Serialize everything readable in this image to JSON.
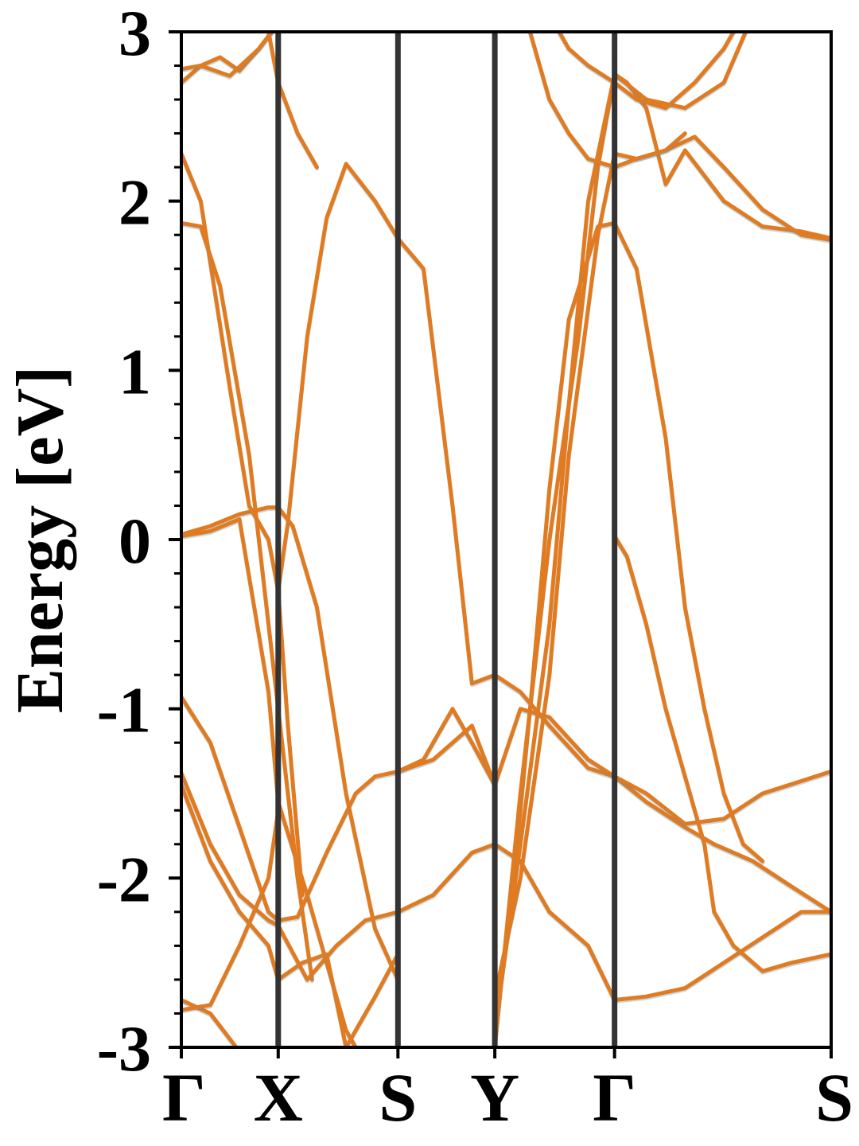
{
  "chart_data": {
    "type": "line",
    "title": "",
    "xlabel": "",
    "ylabel": "Energy [eV]",
    "ylim": [
      -3,
      3
    ],
    "grid": false,
    "yticks": [
      "-3",
      "-2",
      "-1",
      "0",
      "1",
      "2",
      "3"
    ],
    "kpath": [
      "Γ",
      "X",
      "S",
      "Y",
      "Γ",
      "S"
    ],
    "kpath_positions": [
      0,
      1,
      2.236,
      3.236,
      4.472,
      6.708
    ],
    "colors": {
      "band": "#e07b21",
      "shadow": "#5b8fa8",
      "axis": "#000000",
      "divider": "#333333"
    },
    "series": [
      {
        "x": [
          0,
          0.3,
          0.6,
          0.9,
          1.0,
          1.15,
          1.4,
          1.7,
          2.0,
          2.236
        ],
        "y": [
          0.03,
          0.08,
          0.15,
          0.19,
          0.19,
          0.08,
          -0.4,
          -1.5,
          -2.3,
          -2.6
        ]
      },
      {
        "x": [
          0,
          0.3,
          0.6,
          0.9,
          1.0,
          1.3,
          1.7,
          2.0,
          2.236
        ],
        "y": [
          0.02,
          0.05,
          0.12,
          -0.9,
          -1.55,
          -2.1,
          -2.9,
          -3.2,
          -3.4
        ]
      },
      {
        "x": [
          0,
          0.2,
          0.5,
          0.7,
          0.9,
          1.0,
          1.1,
          1.25
        ],
        "y": [
          2.28,
          2.0,
          0.9,
          0.2,
          0.0,
          -0.3,
          -1.1,
          -2.1
        ]
      },
      {
        "x": [
          0,
          0.2,
          0.4,
          0.7,
          0.9,
          1.0,
          1.2,
          1.35
        ],
        "y": [
          1.87,
          1.85,
          1.5,
          0.5,
          -0.5,
          -1.0,
          -2.0,
          -2.6
        ]
      },
      {
        "x": [
          1.0,
          1.1,
          1.3,
          1.5,
          1.7,
          2.0,
          2.236,
          2.5,
          2.8,
          3.0,
          3.236
        ],
        "y": [
          -0.3,
          0.1,
          1.2,
          1.9,
          2.22,
          2.0,
          1.78,
          1.6,
          0.2,
          -0.85,
          -0.8
        ]
      },
      {
        "x": [
          3.236,
          3.5,
          3.8,
          4.2,
          4.472,
          4.8,
          5.2,
          5.5,
          5.9,
          6.3,
          6.708
        ],
        "y": [
          -0.8,
          -0.9,
          -1.1,
          -1.35,
          -1.4,
          -1.55,
          -1.7,
          -1.8,
          -1.9,
          -2.05,
          -2.2
        ]
      },
      {
        "x": [
          0,
          0.3,
          0.6,
          0.9,
          1.0,
          1.2,
          1.5,
          1.8,
          2.0,
          2.236,
          2.5,
          2.8,
          3.0,
          3.236
        ],
        "y": [
          -0.93,
          -1.2,
          -1.7,
          -2.2,
          -2.25,
          -2.23,
          -1.85,
          -1.5,
          -1.4,
          -1.37,
          -1.3,
          -1.0,
          -1.2,
          -1.45
        ]
      },
      {
        "x": [
          2.236,
          2.6,
          3.0,
          3.236,
          3.5,
          3.8,
          4.2,
          4.472,
          4.8,
          5.2,
          5.6,
          6.0,
          6.708
        ],
        "y": [
          -1.37,
          -1.3,
          -1.1,
          -1.45,
          -1.0,
          -1.05,
          -1.3,
          -1.4,
          -1.5,
          -1.68,
          -1.65,
          -1.5,
          -1.37
        ]
      },
      {
        "x": [
          0,
          0.3,
          0.6,
          0.9,
          1.0,
          1.3,
          1.6,
          1.9,
          2.236,
          2.6,
          3.0,
          3.236
        ],
        "y": [
          -1.38,
          -1.8,
          -2.1,
          -2.25,
          -2.28,
          -2.6,
          -2.4,
          -2.25,
          -2.2,
          -2.1,
          -1.85,
          -1.8
        ]
      },
      {
        "x": [
          0,
          0.3,
          0.6,
          0.9,
          1.0,
          1.25,
          1.5,
          1.7,
          2.0,
          2.236
        ],
        "y": [
          -1.45,
          -1.9,
          -2.2,
          -2.4,
          -2.6,
          -2.5,
          -2.45,
          -3.0,
          -2.7,
          -2.45
        ]
      },
      {
        "x": [
          3.236,
          3.5,
          3.8,
          4.2,
          4.472,
          4.8,
          5.2,
          5.6,
          6.0,
          6.4,
          6.708
        ],
        "y": [
          -1.8,
          -1.9,
          -2.2,
          -2.4,
          -2.72,
          -2.7,
          -2.65,
          -2.5,
          -2.35,
          -2.2,
          -2.2
        ]
      },
      {
        "x": [
          0,
          0.3,
          0.5,
          0.7,
          0.9,
          1.0
        ],
        "y": [
          -2.72,
          -2.8,
          -2.95,
          -3.1,
          -3.3,
          -3.4
        ]
      },
      {
        "x": [
          0,
          0.3,
          0.6,
          0.9,
          1.0
        ],
        "y": [
          -2.78,
          -2.75,
          -2.4,
          -2.0,
          -1.6
        ]
      },
      {
        "x": [
          3.236,
          3.4,
          3.6,
          3.8,
          4.0,
          4.3,
          4.472,
          4.7,
          5.0,
          5.2,
          5.4,
          5.6,
          5.8,
          6.0
        ],
        "y": [
          -2.8,
          -2.2,
          -1.0,
          0.3,
          1.3,
          1.85,
          1.87,
          1.6,
          0.6,
          -0.4,
          -1.0,
          -1.5,
          -1.8,
          -1.9
        ]
      },
      {
        "x": [
          4.472,
          4.6,
          4.8,
          5.0,
          5.2,
          5.4,
          5.5,
          5.7,
          6.0,
          6.3,
          6.708
        ],
        "y": [
          0.02,
          -0.1,
          -0.5,
          -1.0,
          -1.4,
          -1.8,
          -2.2,
          -2.4,
          -2.55,
          -2.5,
          -2.45
        ]
      },
      {
        "x": [
          3.236,
          3.5,
          3.8,
          4.1,
          4.3,
          4.472,
          4.6,
          4.8,
          5.0,
          5.2,
          5.6,
          6.0,
          6.4,
          6.708
        ],
        "y": [
          -3.0,
          -1.5,
          0.0,
          1.2,
          2.2,
          2.75,
          2.7,
          2.55,
          2.1,
          2.3,
          2.0,
          1.85,
          1.82,
          1.78
        ]
      },
      {
        "x": [
          3.236,
          3.5,
          3.8,
          4.0,
          4.3,
          4.472,
          4.7,
          5.0,
          5.3,
          5.6,
          6.0,
          6.4,
          6.708
        ],
        "y": [
          -2.7,
          -2.0,
          -0.8,
          0.5,
          1.8,
          2.28,
          2.25,
          2.3,
          2.38,
          2.2,
          1.95,
          1.8,
          1.77
        ]
      },
      {
        "x": [
          3.236,
          3.5,
          3.8,
          4.0,
          4.2,
          4.472,
          4.8,
          5.2,
          5.6,
          5.9,
          6.2,
          6.4
        ],
        "y": [
          -2.9,
          -1.8,
          -0.5,
          0.8,
          2.0,
          2.75,
          2.6,
          2.55,
          2.7,
          3.1,
          3.4,
          3.5
        ]
      },
      {
        "x": [
          0,
          0.2,
          0.4,
          0.6,
          0.8,
          1.0
        ],
        "y": [
          2.7,
          2.8,
          2.85,
          2.77,
          2.9,
          3.05
        ]
      },
      {
        "x": [
          0,
          0.2,
          0.5,
          0.8,
          1.0
        ],
        "y": [
          2.78,
          2.8,
          2.74,
          2.9,
          3.05
        ]
      },
      {
        "x": [
          3.5,
          3.8,
          4.0,
          4.2,
          4.472,
          4.7,
          5.0,
          5.2
        ],
        "y": [
          3.2,
          2.6,
          2.4,
          2.25,
          2.2,
          2.25,
          2.3,
          2.4
        ]
      },
      {
        "x": [
          3.8,
          4.0,
          4.2,
          4.472,
          4.7,
          5.0,
          5.3,
          5.6,
          5.8
        ],
        "y": [
          3.1,
          2.9,
          2.8,
          2.7,
          2.6,
          2.55,
          2.7,
          2.9,
          3.1
        ]
      },
      {
        "x": [
          0.9,
          1.0,
          1.2,
          1.4
        ],
        "y": [
          3.0,
          2.7,
          2.4,
          2.2
        ]
      }
    ]
  }
}
